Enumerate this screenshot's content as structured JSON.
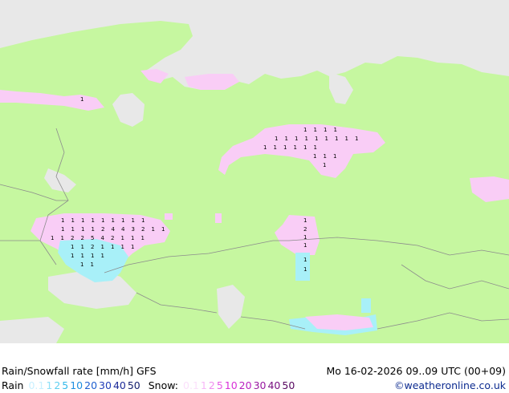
{
  "header": {
    "title": "Rain/Snowfall rate [mm/h] GFS",
    "run": "Mo 16-02-2026 09..09 UTC (00+09)"
  },
  "legend": {
    "rain_label": "Rain",
    "rain_values": [
      {
        "v": "0.1",
        "color": "#c8f0ff"
      },
      {
        "v": "1",
        "color": "#8ee0f7"
      },
      {
        "v": "2",
        "color": "#5fcff0"
      },
      {
        "v": "5",
        "color": "#32b9ea"
      },
      {
        "v": "10",
        "color": "#1f8fe0"
      },
      {
        "v": "20",
        "color": "#1f5fd0"
      },
      {
        "v": "30",
        "color": "#203cb8"
      },
      {
        "v": "40",
        "color": "#1c2a98"
      },
      {
        "v": "50",
        "color": "#15206f"
      }
    ],
    "snow_label": "Snow:",
    "snow_values": [
      {
        "v": "0.1",
        "color": "#fbe0fb"
      },
      {
        "v": "1",
        "color": "#f8b8f8"
      },
      {
        "v": "2",
        "color": "#f08ef0"
      },
      {
        "v": "5",
        "color": "#e65ce6"
      },
      {
        "v": "10",
        "color": "#d830d8"
      },
      {
        "v": "20",
        "color": "#b820c0"
      },
      {
        "v": "30",
        "color": "#9818a0"
      },
      {
        "v": "40",
        "color": "#781080"
      },
      {
        "v": "50",
        "color": "#580860"
      }
    ]
  },
  "credit": "©weatheronline.co.uk",
  "colors": {
    "land": "#c6f7a0",
    "sea": "#e8e8e8",
    "border": "#8c8c8c",
    "snow": "#f9cdf6",
    "rain": "#a8f0f8"
  },
  "map_labels": {
    "scandinavia": [
      "1"
    ],
    "ural_north": [
      [
        "1",
        "1",
        "1",
        "1"
      ],
      [
        "1",
        "1",
        "1",
        "1",
        "1",
        "1",
        "1",
        "1",
        "1"
      ],
      [
        "1",
        "1",
        "1",
        "1",
        "1",
        "1"
      ],
      [
        "1",
        "1",
        "1"
      ],
      [
        "1"
      ]
    ],
    "volga_west": [
      [
        "1",
        "1",
        "1",
        "1",
        "1",
        "1",
        "1",
        "1",
        "1"
      ],
      [
        "1",
        "1",
        "1",
        "1",
        "2",
        "4",
        "4",
        "3",
        "2",
        "1",
        "1"
      ],
      [
        "1",
        "1",
        "2",
        "2",
        "5",
        "4",
        "2",
        "1",
        "1",
        "1"
      ],
      [
        "1",
        "1",
        "2",
        "1",
        "1",
        "1",
        "1"
      ],
      [
        "1",
        "1",
        "1",
        "1"
      ],
      [
        "1",
        "1"
      ]
    ],
    "kazakh_column": [
      "1",
      "2",
      "1",
      "1",
      "1",
      "1"
    ]
  }
}
